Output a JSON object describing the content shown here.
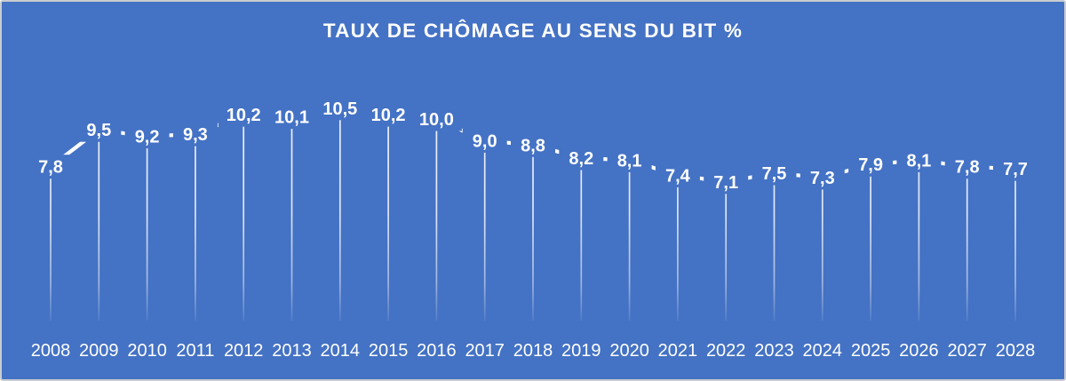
{
  "chart_data": {
    "type": "line",
    "title": "TAUX DE CHÔMAGE AU SENS DU BIT %",
    "unit": "%",
    "categories": [
      "2008",
      "2009",
      "2010",
      "2011",
      "2012",
      "2013",
      "2014",
      "2015",
      "2016",
      "2017",
      "2018",
      "2019",
      "2020",
      "2021",
      "2022",
      "2023",
      "2024",
      "2025",
      "2026",
      "2027",
      "2028"
    ],
    "values": [
      7.8,
      9.5,
      9.2,
      9.3,
      10.2,
      10.1,
      10.5,
      10.2,
      10.0,
      9.0,
      8.8,
      8.2,
      8.1,
      7.4,
      7.1,
      7.5,
      7.3,
      7.9,
      8.1,
      7.8,
      7.7
    ],
    "labels": [
      "7,8",
      "9,5",
      "9,2",
      "9,3",
      "10,2",
      "10,1",
      "10,5",
      "10,2",
      "10,0",
      "9,0",
      "8,8",
      "8,2",
      "8,1",
      "7,4",
      "7,1",
      "7,5",
      "7,3",
      "7,9",
      "8,1",
      "7,8",
      "7,7"
    ],
    "decimal_separator": ",",
    "xlabel": "",
    "ylabel": "",
    "legend_position": "none",
    "gridlines": false,
    "y_axis_visible": false,
    "data_label_position": "center",
    "drop_lines": true,
    "colors": {
      "background": "#4472C4",
      "series": "#FFFFFF",
      "label_text": "#FFFFFF",
      "axis_text": "#FFFFFF",
      "frame_border": "#C9CCD2"
    }
  }
}
